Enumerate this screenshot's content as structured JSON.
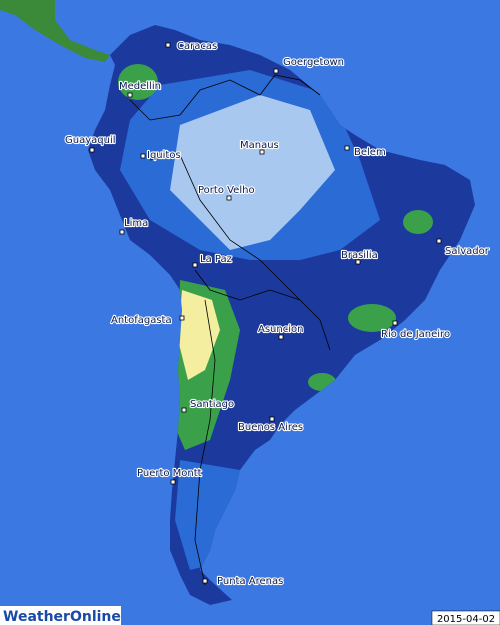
{
  "cities": [
    "Caracas",
    "Goergetown",
    "Medellin",
    "Guayaquil",
    "Iquitos",
    "Manaus",
    "Belem",
    "Porto Velho",
    "Lima",
    "Salvador",
    "La Paz",
    "Brasilia",
    "Antofagasta",
    "Rio de Janeiro",
    "Asuncion",
    "Santiago",
    "Buenos Aires",
    "Puerto Montt",
    "Punta Arenas"
  ],
  "logo": "WeatherOnline",
  "date": "2015-04-02"
}
